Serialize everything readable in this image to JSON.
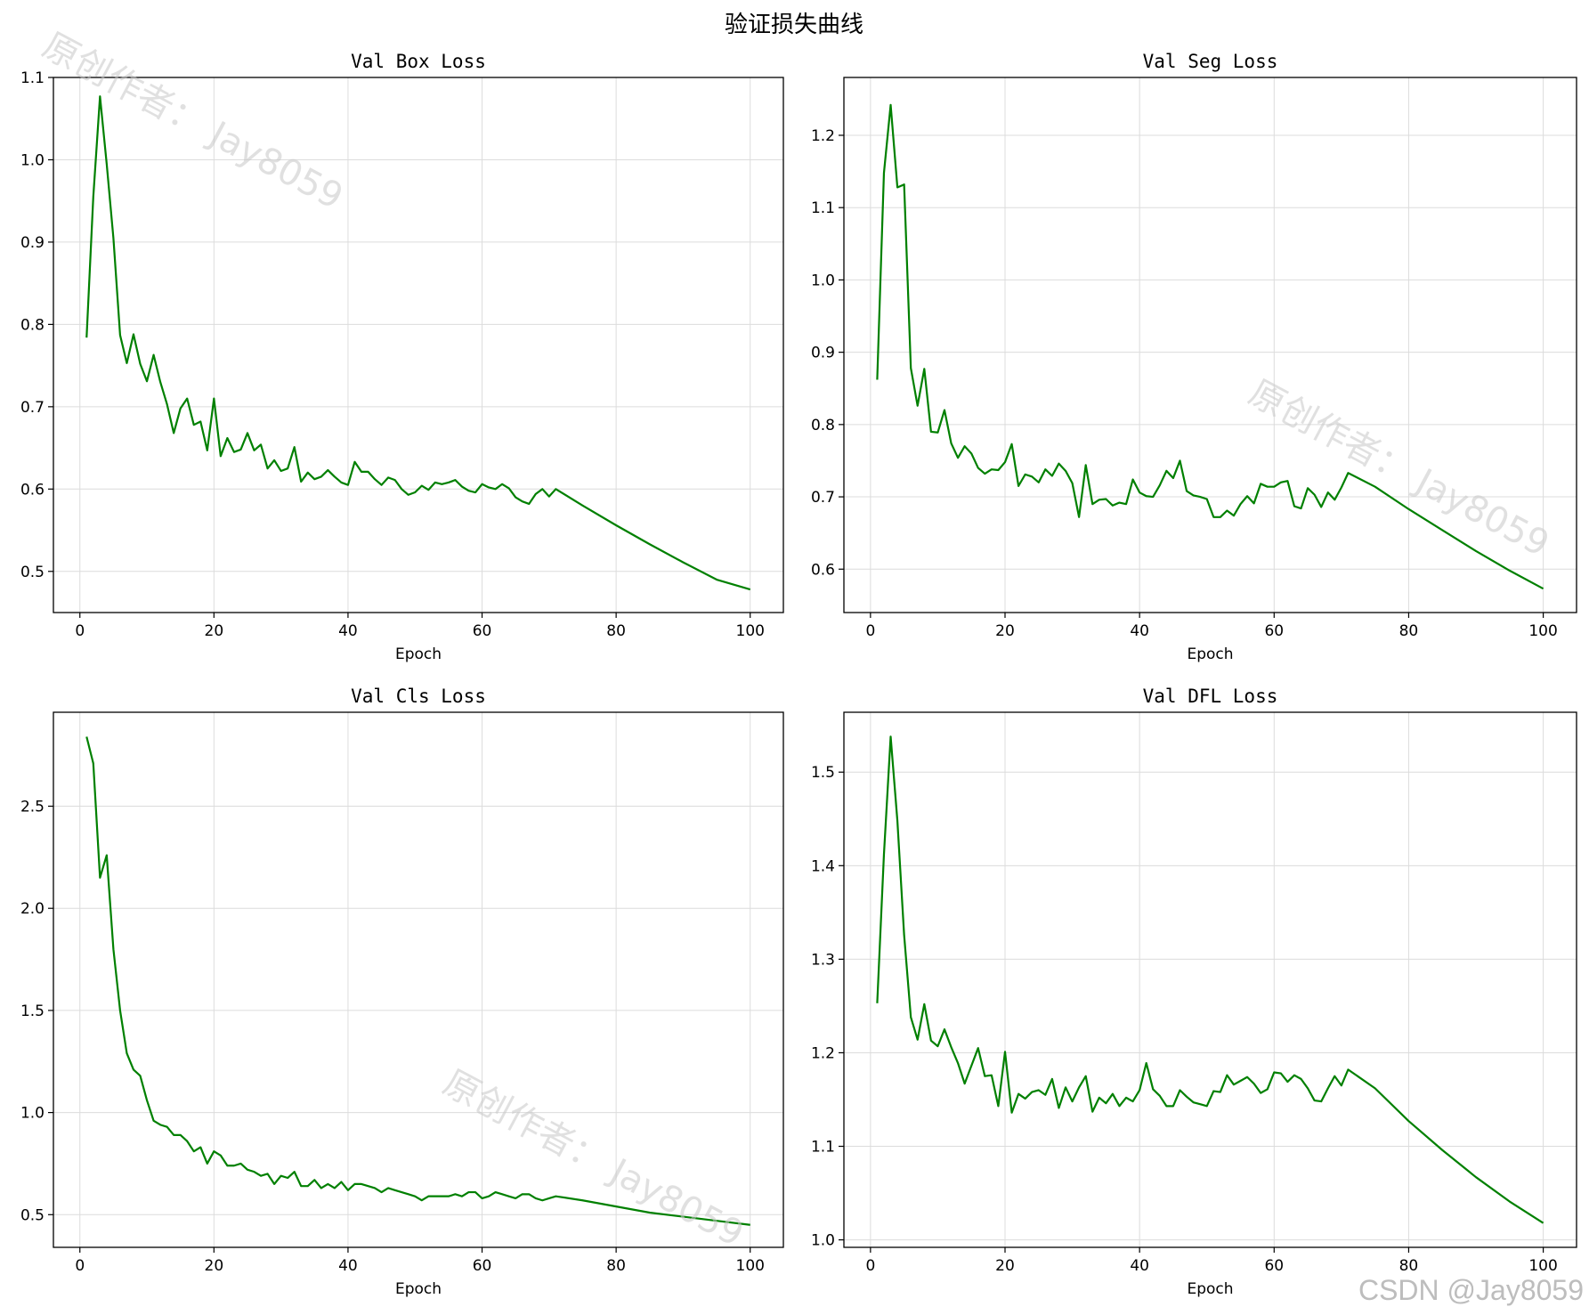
{
  "figure": {
    "suptitle": "验证损失曲线",
    "watermark": "原创作者： Jay8059",
    "credit": "CSDN @Jay8059",
    "line_color": "#008000"
  },
  "chart_data": [
    {
      "type": "line",
      "title": "Val Box Loss",
      "xlabel": "Epoch",
      "ylabel": "",
      "xlim": [
        -3.95,
        104.95
      ],
      "ylim": [
        0.45,
        1.1
      ],
      "xticks": [
        0,
        20,
        40,
        60,
        80,
        100
      ],
      "yticks": [
        0.5,
        0.6,
        0.7,
        0.8,
        0.9,
        1.0,
        1.1
      ],
      "ytick_labels": [
        "0.5",
        "0.6",
        "0.7",
        "0.8",
        "0.9",
        "1.0",
        "1.1"
      ],
      "grid": true,
      "series": [
        {
          "name": "Val Box Loss",
          "x": [
            1,
            2,
            3,
            4,
            5,
            6,
            7,
            8,
            9,
            10,
            11,
            12,
            13,
            14,
            15,
            16,
            17,
            18,
            19,
            20,
            21,
            22,
            23,
            24,
            25,
            26,
            27,
            28,
            29,
            30,
            31,
            32,
            33,
            34,
            35,
            36,
            37,
            38,
            39,
            40,
            41,
            42,
            43,
            44,
            45,
            46,
            47,
            48,
            49,
            50,
            51,
            52,
            53,
            54,
            55,
            56,
            57,
            58,
            59,
            60,
            61,
            62,
            63,
            64,
            65,
            66,
            67,
            68,
            69,
            70,
            71,
            75,
            80,
            85,
            90,
            95,
            100
          ],
          "values": [
            0.784,
            0.955,
            1.077,
            0.995,
            0.905,
            0.787,
            0.753,
            0.788,
            0.752,
            0.731,
            0.763,
            0.73,
            0.703,
            0.668,
            0.698,
            0.71,
            0.678,
            0.682,
            0.647,
            0.71,
            0.64,
            0.662,
            0.645,
            0.648,
            0.668,
            0.647,
            0.654,
            0.625,
            0.635,
            0.622,
            0.625,
            0.651,
            0.609,
            0.62,
            0.612,
            0.615,
            0.623,
            0.615,
            0.608,
            0.605,
            0.633,
            0.621,
            0.621,
            0.612,
            0.605,
            0.614,
            0.611,
            0.6,
            0.593,
            0.596,
            0.604,
            0.599,
            0.608,
            0.606,
            0.608,
            0.611,
            0.603,
            0.598,
            0.596,
            0.606,
            0.602,
            0.6,
            0.606,
            0.601,
            0.59,
            0.585,
            0.582,
            0.594,
            0.6,
            0.591,
            0.6,
            0.58,
            0.556,
            0.533,
            0.511,
            0.49,
            0.478
          ]
        }
      ]
    },
    {
      "type": "line",
      "title": "Val Seg Loss",
      "xlabel": "Epoch",
      "ylabel": "",
      "xlim": [
        -3.95,
        104.95
      ],
      "ylim": [
        0.54,
        1.28
      ],
      "xticks": [
        0,
        20,
        40,
        60,
        80,
        100
      ],
      "yticks": [
        0.6,
        0.7,
        0.8,
        0.9,
        1.0,
        1.1,
        1.2
      ],
      "ytick_labels": [
        "0.6",
        "0.7",
        "0.8",
        "0.9",
        "1.0",
        "1.1",
        "1.2"
      ],
      "grid": true,
      "series": [
        {
          "name": "Val Seg Loss",
          "x": [
            1,
            2,
            3,
            4,
            5,
            6,
            7,
            8,
            9,
            10,
            11,
            12,
            13,
            14,
            15,
            16,
            17,
            18,
            19,
            20,
            21,
            22,
            23,
            24,
            25,
            26,
            27,
            28,
            29,
            30,
            31,
            32,
            33,
            34,
            35,
            36,
            37,
            38,
            39,
            40,
            41,
            42,
            43,
            44,
            45,
            46,
            47,
            48,
            49,
            50,
            51,
            52,
            53,
            54,
            55,
            56,
            57,
            58,
            59,
            60,
            61,
            62,
            63,
            64,
            65,
            66,
            67,
            68,
            69,
            70,
            71,
            75,
            80,
            85,
            90,
            95,
            100
          ],
          "values": [
            0.862,
            1.148,
            1.242,
            1.128,
            1.132,
            0.878,
            0.826,
            0.877,
            0.79,
            0.789,
            0.82,
            0.774,
            0.754,
            0.77,
            0.76,
            0.74,
            0.732,
            0.738,
            0.737,
            0.748,
            0.773,
            0.715,
            0.731,
            0.728,
            0.72,
            0.738,
            0.729,
            0.746,
            0.736,
            0.719,
            0.672,
            0.744,
            0.69,
            0.696,
            0.697,
            0.688,
            0.692,
            0.69,
            0.724,
            0.706,
            0.701,
            0.7,
            0.716,
            0.736,
            0.726,
            0.75,
            0.708,
            0.702,
            0.7,
            0.697,
            0.672,
            0.672,
            0.681,
            0.674,
            0.69,
            0.701,
            0.691,
            0.718,
            0.714,
            0.714,
            0.72,
            0.722,
            0.687,
            0.684,
            0.712,
            0.703,
            0.686,
            0.706,
            0.696,
            0.713,
            0.733,
            0.714,
            0.683,
            0.654,
            0.625,
            0.598,
            0.573
          ]
        }
      ]
    },
    {
      "type": "line",
      "title": "Val Cls Loss",
      "xlabel": "Epoch",
      "ylabel": "",
      "xlim": [
        -3.95,
        104.95
      ],
      "ylim": [
        0.34,
        2.96
      ],
      "xticks": [
        0,
        20,
        40,
        60,
        80,
        100
      ],
      "yticks": [
        0.5,
        1.0,
        1.5,
        2.0,
        2.5
      ],
      "ytick_labels": [
        "0.5",
        "1.0",
        "1.5",
        "2.0",
        "2.5"
      ],
      "grid": true,
      "series": [
        {
          "name": "Val Cls Loss",
          "x": [
            1,
            2,
            3,
            4,
            5,
            6,
            7,
            8,
            9,
            10,
            11,
            12,
            13,
            14,
            15,
            16,
            17,
            18,
            19,
            20,
            21,
            22,
            23,
            24,
            25,
            26,
            27,
            28,
            29,
            30,
            31,
            32,
            33,
            34,
            35,
            36,
            37,
            38,
            39,
            40,
            41,
            42,
            43,
            44,
            45,
            46,
            47,
            48,
            49,
            50,
            51,
            52,
            53,
            54,
            55,
            56,
            57,
            58,
            59,
            60,
            61,
            62,
            63,
            64,
            65,
            66,
            67,
            68,
            69,
            70,
            71,
            75,
            80,
            85,
            90,
            95,
            100
          ],
          "values": [
            2.84,
            2.71,
            2.15,
            2.26,
            1.8,
            1.5,
            1.29,
            1.21,
            1.18,
            1.06,
            0.96,
            0.94,
            0.93,
            0.89,
            0.89,
            0.86,
            0.81,
            0.83,
            0.75,
            0.81,
            0.79,
            0.74,
            0.74,
            0.75,
            0.72,
            0.71,
            0.69,
            0.7,
            0.65,
            0.69,
            0.68,
            0.71,
            0.64,
            0.64,
            0.67,
            0.63,
            0.65,
            0.63,
            0.66,
            0.62,
            0.65,
            0.65,
            0.64,
            0.63,
            0.61,
            0.63,
            0.62,
            0.61,
            0.6,
            0.59,
            0.57,
            0.59,
            0.59,
            0.59,
            0.59,
            0.6,
            0.59,
            0.61,
            0.61,
            0.58,
            0.59,
            0.61,
            0.6,
            0.59,
            0.58,
            0.6,
            0.6,
            0.58,
            0.57,
            0.58,
            0.59,
            0.57,
            0.54,
            0.51,
            0.49,
            0.47,
            0.45
          ]
        }
      ]
    },
    {
      "type": "line",
      "title": "Val DFL Loss",
      "xlabel": "Epoch",
      "ylabel": "",
      "xlim": [
        -3.95,
        104.95
      ],
      "ylim": [
        0.992,
        1.564
      ],
      "xticks": [
        0,
        20,
        40,
        60,
        80,
        100
      ],
      "yticks": [
        1.0,
        1.1,
        1.2,
        1.3,
        1.4,
        1.5
      ],
      "ytick_labels": [
        "1.0",
        "1.1",
        "1.2",
        "1.3",
        "1.4",
        "1.5"
      ],
      "grid": true,
      "series": [
        {
          "name": "Val DFL Loss",
          "x": [
            1,
            2,
            3,
            4,
            5,
            6,
            7,
            8,
            9,
            10,
            11,
            12,
            13,
            14,
            15,
            16,
            17,
            18,
            19,
            20,
            21,
            22,
            23,
            24,
            25,
            26,
            27,
            28,
            29,
            30,
            31,
            32,
            33,
            34,
            35,
            36,
            37,
            38,
            39,
            40,
            41,
            42,
            43,
            44,
            45,
            46,
            47,
            48,
            49,
            50,
            51,
            52,
            53,
            54,
            55,
            56,
            57,
            58,
            59,
            60,
            61,
            62,
            63,
            64,
            65,
            66,
            67,
            68,
            69,
            70,
            71,
            75,
            80,
            85,
            90,
            95,
            100
          ],
          "values": [
            1.253,
            1.412,
            1.538,
            1.448,
            1.326,
            1.238,
            1.214,
            1.252,
            1.213,
            1.207,
            1.225,
            1.206,
            1.189,
            1.167,
            1.186,
            1.205,
            1.175,
            1.176,
            1.143,
            1.201,
            1.136,
            1.156,
            1.151,
            1.158,
            1.16,
            1.155,
            1.172,
            1.141,
            1.163,
            1.148,
            1.163,
            1.175,
            1.137,
            1.152,
            1.146,
            1.156,
            1.143,
            1.152,
            1.148,
            1.16,
            1.189,
            1.161,
            1.154,
            1.143,
            1.143,
            1.16,
            1.153,
            1.147,
            1.145,
            1.143,
            1.159,
            1.158,
            1.176,
            1.166,
            1.17,
            1.174,
            1.167,
            1.157,
            1.161,
            1.179,
            1.178,
            1.169,
            1.176,
            1.172,
            1.162,
            1.149,
            1.148,
            1.162,
            1.175,
            1.165,
            1.182,
            1.162,
            1.127,
            1.096,
            1.067,
            1.041,
            1.018
          ]
        }
      ]
    }
  ]
}
